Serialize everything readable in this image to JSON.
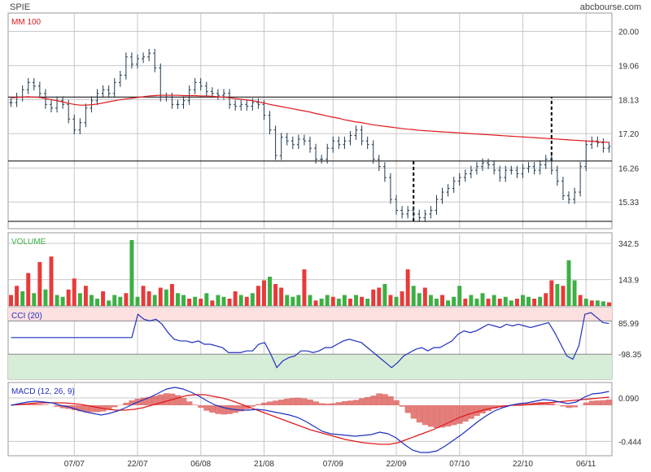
{
  "header": {
    "symbol": "SPIE",
    "source": "abcbourse.com"
  },
  "colors": {
    "price": "#1f3a4f",
    "ma": "#e0191c",
    "volume_up": "#3cb043",
    "volume_down": "#e83a3a",
    "cci": "#2030c0",
    "macd": "#2030c0",
    "signal": "#e0191c",
    "hist": "#d9534f",
    "cci_overbought_band": "#fde0e0",
    "cci_oversold_band": "#d8edd8",
    "grid": "#c8c8c8",
    "frame": "#999999"
  },
  "chart_data": [
    {
      "type": "line",
      "panel": "price",
      "title": "",
      "legend": [
        {
          "label": "MM 100",
          "color": "#e0191c"
        }
      ],
      "ylim": [
        14.6,
        20.5
      ],
      "yticks": [
        "20.00",
        "19.06",
        "18.13",
        "17.20",
        "16.26",
        "15.33"
      ],
      "xticks": [
        {
          "label": "07/07",
          "bar": 11
        },
        {
          "label": "22/07",
          "bar": 22
        },
        {
          "label": "06/08",
          "bar": 33
        },
        {
          "label": "21/08",
          "bar": 44
        },
        {
          "label": "07/09",
          "bar": 56
        },
        {
          "label": "22/09",
          "bar": 67
        },
        {
          "label": "07/10",
          "bar": 78
        },
        {
          "label": "22/10",
          "bar": 89
        },
        {
          "label": "06/11",
          "bar": 100
        }
      ],
      "bar_count": 105,
      "horizontal_lines": [
        18.2,
        16.45,
        14.8
      ],
      "dashed_markers": [
        {
          "bar": 70,
          "from": 14.8,
          "to": 16.45
        },
        {
          "bar": 94,
          "from": 16.45,
          "to": 18.2
        }
      ],
      "close": [
        18.05,
        18.2,
        18.4,
        18.6,
        18.5,
        18.3,
        18.0,
        17.9,
        18.1,
        18.0,
        17.6,
        17.3,
        17.5,
        17.9,
        18.1,
        18.3,
        18.4,
        18.3,
        18.6,
        18.8,
        19.3,
        19.1,
        19.25,
        19.3,
        19.4,
        19.0,
        18.2,
        18.2,
        18.0,
        18.0,
        18.1,
        18.4,
        18.6,
        18.5,
        18.35,
        18.3,
        18.25,
        18.3,
        18.0,
        17.95,
        18.0,
        17.95,
        18.05,
        18.0,
        17.7,
        17.3,
        16.6,
        17.1,
        17.0,
        16.9,
        17.05,
        17.0,
        16.8,
        16.5,
        16.5,
        16.8,
        17.0,
        16.9,
        17.0,
        17.15,
        17.3,
        17.0,
        16.9,
        16.5,
        16.3,
        16.0,
        15.4,
        15.1,
        15.0,
        15.1,
        15.0,
        14.9,
        15.0,
        15.1,
        15.4,
        15.6,
        15.7,
        15.9,
        16.0,
        16.1,
        16.2,
        16.3,
        16.4,
        16.35,
        16.2,
        16.0,
        16.2,
        16.2,
        16.1,
        16.25,
        16.3,
        16.2,
        16.35,
        16.5,
        16.2,
        15.9,
        15.5,
        15.4,
        15.6,
        16.3,
        16.9,
        17.0,
        16.95,
        16.8,
        16.85
      ],
      "ma100": [
        18.18,
        18.19,
        18.2,
        18.21,
        18.2,
        18.19,
        18.16,
        18.13,
        18.1,
        18.07,
        18.03,
        18.0,
        17.98,
        17.98,
        17.99,
        18.01,
        18.04,
        18.07,
        18.1,
        18.13,
        18.15,
        18.17,
        18.19,
        18.21,
        18.23,
        18.24,
        18.25,
        18.25,
        18.25,
        18.25,
        18.24,
        18.24,
        18.24,
        18.23,
        18.23,
        18.22,
        18.21,
        18.2,
        18.18,
        18.16,
        18.14,
        18.12,
        18.1,
        18.07,
        18.04,
        18.0,
        17.97,
        17.94,
        17.91,
        17.88,
        17.85,
        17.82,
        17.79,
        17.75,
        17.72,
        17.68,
        17.65,
        17.62,
        17.58,
        17.55,
        17.52,
        17.5,
        17.47,
        17.44,
        17.42,
        17.4,
        17.38,
        17.36,
        17.34,
        17.32,
        17.31,
        17.29,
        17.28,
        17.27,
        17.26,
        17.25,
        17.24,
        17.23,
        17.22,
        17.21,
        17.2,
        17.19,
        17.18,
        17.17,
        17.16,
        17.15,
        17.14,
        17.13,
        17.12,
        17.11,
        17.1,
        17.09,
        17.08,
        17.07,
        17.06,
        17.05,
        17.04,
        17.03,
        17.02,
        17.01,
        17.0,
        16.99,
        16.98,
        16.97,
        16.96
      ]
    },
    {
      "type": "bar",
      "panel": "volume",
      "title": "VOLUME",
      "ylim": [
        0,
        400
      ],
      "yticks": [
        "342.5",
        "143.9"
      ],
      "values": [
        60,
        110,
        80,
        180,
        70,
        240,
        90,
        270,
        60,
        50,
        90,
        150,
        70,
        110,
        60,
        40,
        80,
        30,
        60,
        50,
        70,
        360,
        50,
        110,
        80,
        60,
        100,
        90,
        120,
        70,
        60,
        40,
        50,
        40,
        70,
        30,
        60,
        50,
        40,
        80,
        60,
        50,
        70,
        110,
        140,
        160,
        120,
        100,
        60,
        50,
        60,
        200,
        60,
        30,
        40,
        60,
        50,
        40,
        60,
        40,
        60,
        50,
        40,
        90,
        100,
        120,
        60,
        50,
        80,
        200,
        110,
        70,
        100,
        60,
        40,
        60,
        30,
        50,
        110,
        40,
        60,
        40,
        70,
        40,
        60,
        40,
        50,
        30,
        40,
        60,
        50,
        40,
        50,
        70,
        140,
        120,
        110,
        250,
        140,
        60,
        40,
        30,
        30,
        25,
        20
      ],
      "up": [
        0,
        0,
        1,
        0,
        1,
        0,
        1,
        0,
        1,
        1,
        0,
        0,
        1,
        0,
        1,
        1,
        0,
        1,
        1,
        1,
        0,
        1,
        1,
        0,
        0,
        1,
        0,
        1,
        0,
        1,
        1,
        0,
        1,
        0,
        1,
        0,
        1,
        1,
        0,
        0,
        1,
        0,
        1,
        0,
        0,
        1,
        0,
        0,
        1,
        1,
        1,
        0,
        1,
        0,
        1,
        1,
        0,
        1,
        1,
        0,
        1,
        0,
        1,
        0,
        0,
        1,
        0,
        1,
        0,
        0,
        1,
        1,
        0,
        1,
        1,
        0,
        1,
        1,
        1,
        0,
        1,
        1,
        1,
        0,
        1,
        0,
        1,
        1,
        0,
        1,
        1,
        0,
        1,
        0,
        0,
        1,
        0,
        1,
        1,
        0,
        1,
        0,
        1,
        1,
        0
      ]
    },
    {
      "type": "line",
      "panel": "cci",
      "title": "CCI (20)",
      "ylim": [
        -250,
        180
      ],
      "yticks": [
        "85.99",
        "-98.35"
      ],
      "levels": [
        100,
        -100
      ],
      "values": [
        0,
        0,
        0,
        0,
        0,
        0,
        0,
        0,
        0,
        0,
        0,
        0,
        0,
        0,
        0,
        0,
        0,
        0,
        0,
        0,
        0,
        140,
        110,
        100,
        110,
        80,
        30,
        -10,
        -20,
        -20,
        -30,
        -20,
        -40,
        -40,
        -50,
        -60,
        -90,
        -90,
        -90,
        -80,
        -80,
        -40,
        -30,
        -100,
        -180,
        -140,
        -120,
        -110,
        -80,
        -80,
        -90,
        -80,
        -60,
        -60,
        -40,
        -20,
        -10,
        -20,
        -30,
        -60,
        -90,
        -120,
        -150,
        -180,
        -150,
        -110,
        -90,
        -70,
        -60,
        -80,
        -60,
        -60,
        -40,
        -20,
        20,
        40,
        30,
        40,
        60,
        80,
        70,
        60,
        80,
        70,
        80,
        70,
        60,
        70,
        80,
        90,
        30,
        -40,
        -110,
        -130,
        -50,
        140,
        150,
        120,
        90,
        85
      ],
      "note": "values begin at bar 0"
    },
    {
      "type": "line",
      "panel": "macd",
      "title": "MACD (12, 26, 9)",
      "ylim": [
        -0.62,
        0.28
      ],
      "yticks": [
        "0.090",
        "-0.444"
      ],
      "macd": [
        0,
        0.02,
        0.04,
        0.05,
        0.04,
        0.03,
        0.0,
        -0.02,
        -0.05,
        -0.08,
        -0.1,
        -0.12,
        -0.1,
        -0.07,
        -0.03,
        0.02,
        0.06,
        0.1,
        0.15,
        0.2,
        0.22,
        0.2,
        0.16,
        0.11,
        0.05,
        0.0,
        -0.03,
        -0.05,
        -0.06,
        -0.06,
        -0.05,
        -0.06,
        -0.08,
        -0.1,
        -0.12,
        -0.15,
        -0.2,
        -0.26,
        -0.32,
        -0.35,
        -0.36,
        -0.37,
        -0.38,
        -0.37,
        -0.36,
        -0.33,
        -0.35,
        -0.4,
        -0.48,
        -0.55,
        -0.58,
        -0.58,
        -0.56,
        -0.5,
        -0.43,
        -0.36,
        -0.28,
        -0.2,
        -0.13,
        -0.07,
        -0.03,
        0.0,
        0.02,
        0.03,
        0.05,
        0.07,
        0.06,
        0.04,
        0.02,
        0.04,
        0.1,
        0.14,
        0.15,
        0.17
      ],
      "signal": [
        0,
        0.01,
        0.02,
        0.03,
        0.03,
        0.03,
        0.03,
        0.02,
        0.01,
        -0.01,
        -0.03,
        -0.05,
        -0.06,
        -0.06,
        -0.05,
        -0.03,
        0.0,
        0.03,
        0.06,
        0.09,
        0.12,
        0.13,
        0.13,
        0.11,
        0.09,
        0.06,
        0.02,
        -0.02,
        -0.06,
        -0.1,
        -0.14,
        -0.18,
        -0.22,
        -0.26,
        -0.3,
        -0.33,
        -0.36,
        -0.39,
        -0.42,
        -0.44,
        -0.46,
        -0.47,
        -0.48,
        -0.48,
        -0.46,
        -0.42,
        -0.38,
        -0.34,
        -0.3,
        -0.25,
        -0.2,
        -0.15,
        -0.11,
        -0.08,
        -0.05,
        -0.03,
        -0.01,
        0.0,
        0.0,
        0.01,
        0.02,
        0.03,
        0.04,
        0.05,
        0.06,
        0.07,
        0.08,
        0.09,
        0.1
      ],
      "note": "macd and signal sampled across the full 105-bar span"
    }
  ]
}
